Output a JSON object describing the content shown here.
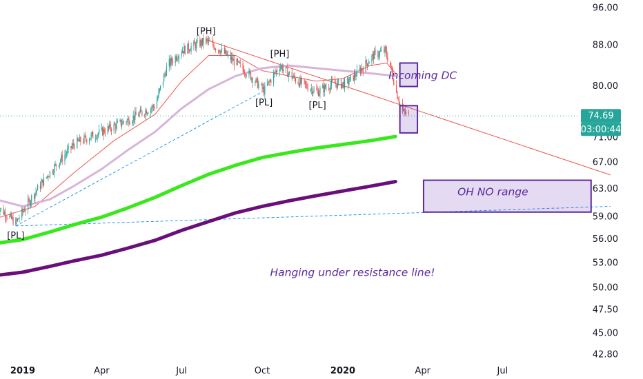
{
  "chart_data": {
    "type": "candlestick",
    "price_axis": {
      "ticks": [
        "96.00",
        "88.00",
        "80.00",
        "74.69",
        "71.00",
        "67.00",
        "63.00",
        "59.00",
        "56.00",
        "53.00",
        "50.00",
        "47.50",
        "45.00",
        "42.80"
      ],
      "tick_values": [
        96.0,
        88.0,
        80.0,
        71.0,
        67.0,
        63.0,
        59.0,
        56.0,
        53.0,
        50.0,
        47.5,
        45.0,
        42.8
      ],
      "scale": "log"
    },
    "time_axis": {
      "ticks": [
        {
          "label": "2019",
          "date": "2019-01-01",
          "bold": true
        },
        {
          "label": "Apr",
          "date": "2019-04-01",
          "bold": false
        },
        {
          "label": "Jul",
          "date": "2019-07-01",
          "bold": false
        },
        {
          "label": "Oct",
          "date": "2019-10-01",
          "bold": false
        },
        {
          "label": "2020",
          "date": "2020-01-01",
          "bold": true
        },
        {
          "label": "Apr",
          "date": "2020-04-01",
          "bold": false
        },
        {
          "label": "Jul",
          "date": "2020-07-01",
          "bold": false
        }
      ]
    },
    "last_price": {
      "value": 74.69,
      "label": "74.69",
      "countdown": "03:00:44",
      "color": "#26a69a"
    },
    "pivots": [
      {
        "label": "[PL]",
        "date": "2018-12-24",
        "price": 57.8,
        "pos": "below"
      },
      {
        "label": "[PH]",
        "date": "2019-07-29",
        "price": 89.2,
        "pos": "above"
      },
      {
        "label": "[PL]",
        "date": "2019-10-03",
        "price": 78.8,
        "pos": "below"
      },
      {
        "label": "[PH]",
        "date": "2019-10-21",
        "price": 84.6,
        "pos": "above"
      },
      {
        "label": "[PL]",
        "date": "2019-12-03",
        "price": 78.3,
        "pos": "below"
      }
    ],
    "lines": [
      {
        "name": "resistance",
        "color": "#ef5350",
        "points": [
          {
            "date": "2019-07-29",
            "price": 89.2
          },
          {
            "date": "2020-11-01",
            "price": 65.1
          }
        ]
      },
      {
        "name": "support-1",
        "color": "#2196f3",
        "dashed": true,
        "points": [
          {
            "date": "2018-12-24",
            "price": 57.8
          },
          {
            "date": "2019-10-01",
            "price": 79.0
          }
        ]
      },
      {
        "name": "support-2",
        "color": "#2196f3",
        "dashed": true,
        "points": [
          {
            "date": "2018-12-24",
            "price": 57.8
          },
          {
            "date": "2020-11-01",
            "price": 60.5
          }
        ]
      }
    ],
    "moving_averages": [
      {
        "name": "ma-fast",
        "color": "#ef5350",
        "width": 1,
        "points": [
          [
            "2018-12-01",
            58.8
          ],
          [
            "2019-01-15",
            60.5
          ],
          [
            "2019-03-01",
            65.5
          ],
          [
            "2019-04-15",
            70.5
          ],
          [
            "2019-06-01",
            75.0
          ],
          [
            "2019-07-01",
            81.0
          ],
          [
            "2019-08-01",
            86.0
          ],
          [
            "2019-09-01",
            86.0
          ],
          [
            "2019-10-01",
            83.0
          ],
          [
            "2019-11-01",
            82.0
          ],
          [
            "2019-12-01",
            81.0
          ],
          [
            "2020-01-01",
            81.5
          ],
          [
            "2020-02-01",
            84.0
          ],
          [
            "2020-02-20",
            84.5
          ],
          [
            "2020-03-01",
            82.5
          ]
        ]
      },
      {
        "name": "ma-mid",
        "color": "#d8b4d8",
        "width": 3,
        "points": [
          [
            "2018-12-01",
            61.5
          ],
          [
            "2019-01-01",
            60.5
          ],
          [
            "2019-02-01",
            61.5
          ],
          [
            "2019-03-01",
            63.5
          ],
          [
            "2019-04-01",
            66.0
          ],
          [
            "2019-05-01",
            69.0
          ],
          [
            "2019-06-01",
            72.0
          ],
          [
            "2019-07-01",
            76.0
          ],
          [
            "2019-08-01",
            79.5
          ],
          [
            "2019-09-01",
            82.0
          ],
          [
            "2019-10-01",
            83.5
          ],
          [
            "2019-11-01",
            84.0
          ],
          [
            "2019-12-01",
            83.5
          ],
          [
            "2020-01-01",
            83.0
          ],
          [
            "2020-02-01",
            82.5
          ],
          [
            "2020-03-01",
            82.0
          ]
        ]
      },
      {
        "name": "ma-green",
        "color": "#39e81c",
        "width": 5,
        "points": [
          [
            "2018-12-01",
            55.5
          ],
          [
            "2019-01-01",
            56.0
          ],
          [
            "2019-02-01",
            57.0
          ],
          [
            "2019-03-01",
            58.0
          ],
          [
            "2019-04-01",
            59.0
          ],
          [
            "2019-05-01",
            60.3
          ],
          [
            "2019-06-01",
            61.8
          ],
          [
            "2019-07-01",
            63.5
          ],
          [
            "2019-08-01",
            65.2
          ],
          [
            "2019-09-01",
            66.6
          ],
          [
            "2019-10-01",
            67.8
          ],
          [
            "2019-11-01",
            68.6
          ],
          [
            "2019-12-01",
            69.3
          ],
          [
            "2020-01-01",
            69.9
          ],
          [
            "2020-02-01",
            70.5
          ],
          [
            "2020-03-01",
            71.2
          ]
        ]
      },
      {
        "name": "ma-purple",
        "color": "#6a0f7a",
        "width": 5,
        "points": [
          [
            "2018-12-01",
            51.5
          ],
          [
            "2019-01-01",
            51.9
          ],
          [
            "2019-02-01",
            52.6
          ],
          [
            "2019-03-01",
            53.3
          ],
          [
            "2019-04-01",
            54.0
          ],
          [
            "2019-05-01",
            54.9
          ],
          [
            "2019-06-01",
            55.9
          ],
          [
            "2019-07-01",
            57.2
          ],
          [
            "2019-08-01",
            58.4
          ],
          [
            "2019-09-01",
            59.6
          ],
          [
            "2019-10-01",
            60.5
          ],
          [
            "2019-11-01",
            61.3
          ],
          [
            "2019-12-01",
            62.0
          ],
          [
            "2020-01-01",
            62.7
          ],
          [
            "2020-02-01",
            63.4
          ],
          [
            "2020-03-01",
            64.1
          ]
        ]
      }
    ],
    "price_path": [
      [
        "2018-12-03",
        60.5
      ],
      [
        "2018-12-24",
        58.2
      ],
      [
        "2019-01-15",
        62.5
      ],
      [
        "2019-02-01",
        65.5
      ],
      [
        "2019-03-01",
        70.0
      ],
      [
        "2019-04-01",
        72.0
      ],
      [
        "2019-05-01",
        74.0
      ],
      [
        "2019-06-01",
        76.5
      ],
      [
        "2019-06-15",
        84.0
      ],
      [
        "2019-07-01",
        87.0
      ],
      [
        "2019-07-29",
        89.0
      ],
      [
        "2019-08-15",
        87.0
      ],
      [
        "2019-09-01",
        84.5
      ],
      [
        "2019-09-15",
        82.5
      ],
      [
        "2019-10-03",
        79.2
      ],
      [
        "2019-10-21",
        84.0
      ],
      [
        "2019-11-10",
        81.0
      ],
      [
        "2019-12-03",
        79.0
      ],
      [
        "2019-12-20",
        80.5
      ],
      [
        "2020-01-05",
        80.5
      ],
      [
        "2020-01-20",
        83.0
      ],
      [
        "2020-02-05",
        86.0
      ],
      [
        "2020-02-18",
        87.0
      ],
      [
        "2020-02-24",
        84.0
      ],
      [
        "2020-03-02",
        79.0
      ],
      [
        "2020-03-09",
        75.5
      ],
      [
        "2020-03-16",
        74.7
      ]
    ],
    "annotations": [
      {
        "id": "incoming",
        "text": "Incoming DC",
        "date": "2020-04-01",
        "price": 82.0
      },
      {
        "id": "ohno",
        "text": "OH NO range",
        "date": "2020-06-20",
        "price": 62.5
      },
      {
        "id": "hanging",
        "text": "Hanging under resistance line!",
        "date": "2020-01-12",
        "price": 51.8
      }
    ],
    "boxes": [
      {
        "id": "box-dc",
        "from": "2020-03-06",
        "to": "2020-03-26",
        "top": 84.5,
        "bottom": 80.0
      },
      {
        "id": "box-current",
        "from": "2020-03-06",
        "to": "2020-03-26",
        "top": 76.5,
        "bottom": 71.8
      },
      {
        "id": "box-ohno",
        "from": "2020-04-02",
        "to": "2020-10-10",
        "top": 64.3,
        "bottom": 59.7
      }
    ],
    "colors": {
      "up": "#26a69a",
      "down": "#ef5350",
      "annotation": "#5b2a9e"
    }
  }
}
